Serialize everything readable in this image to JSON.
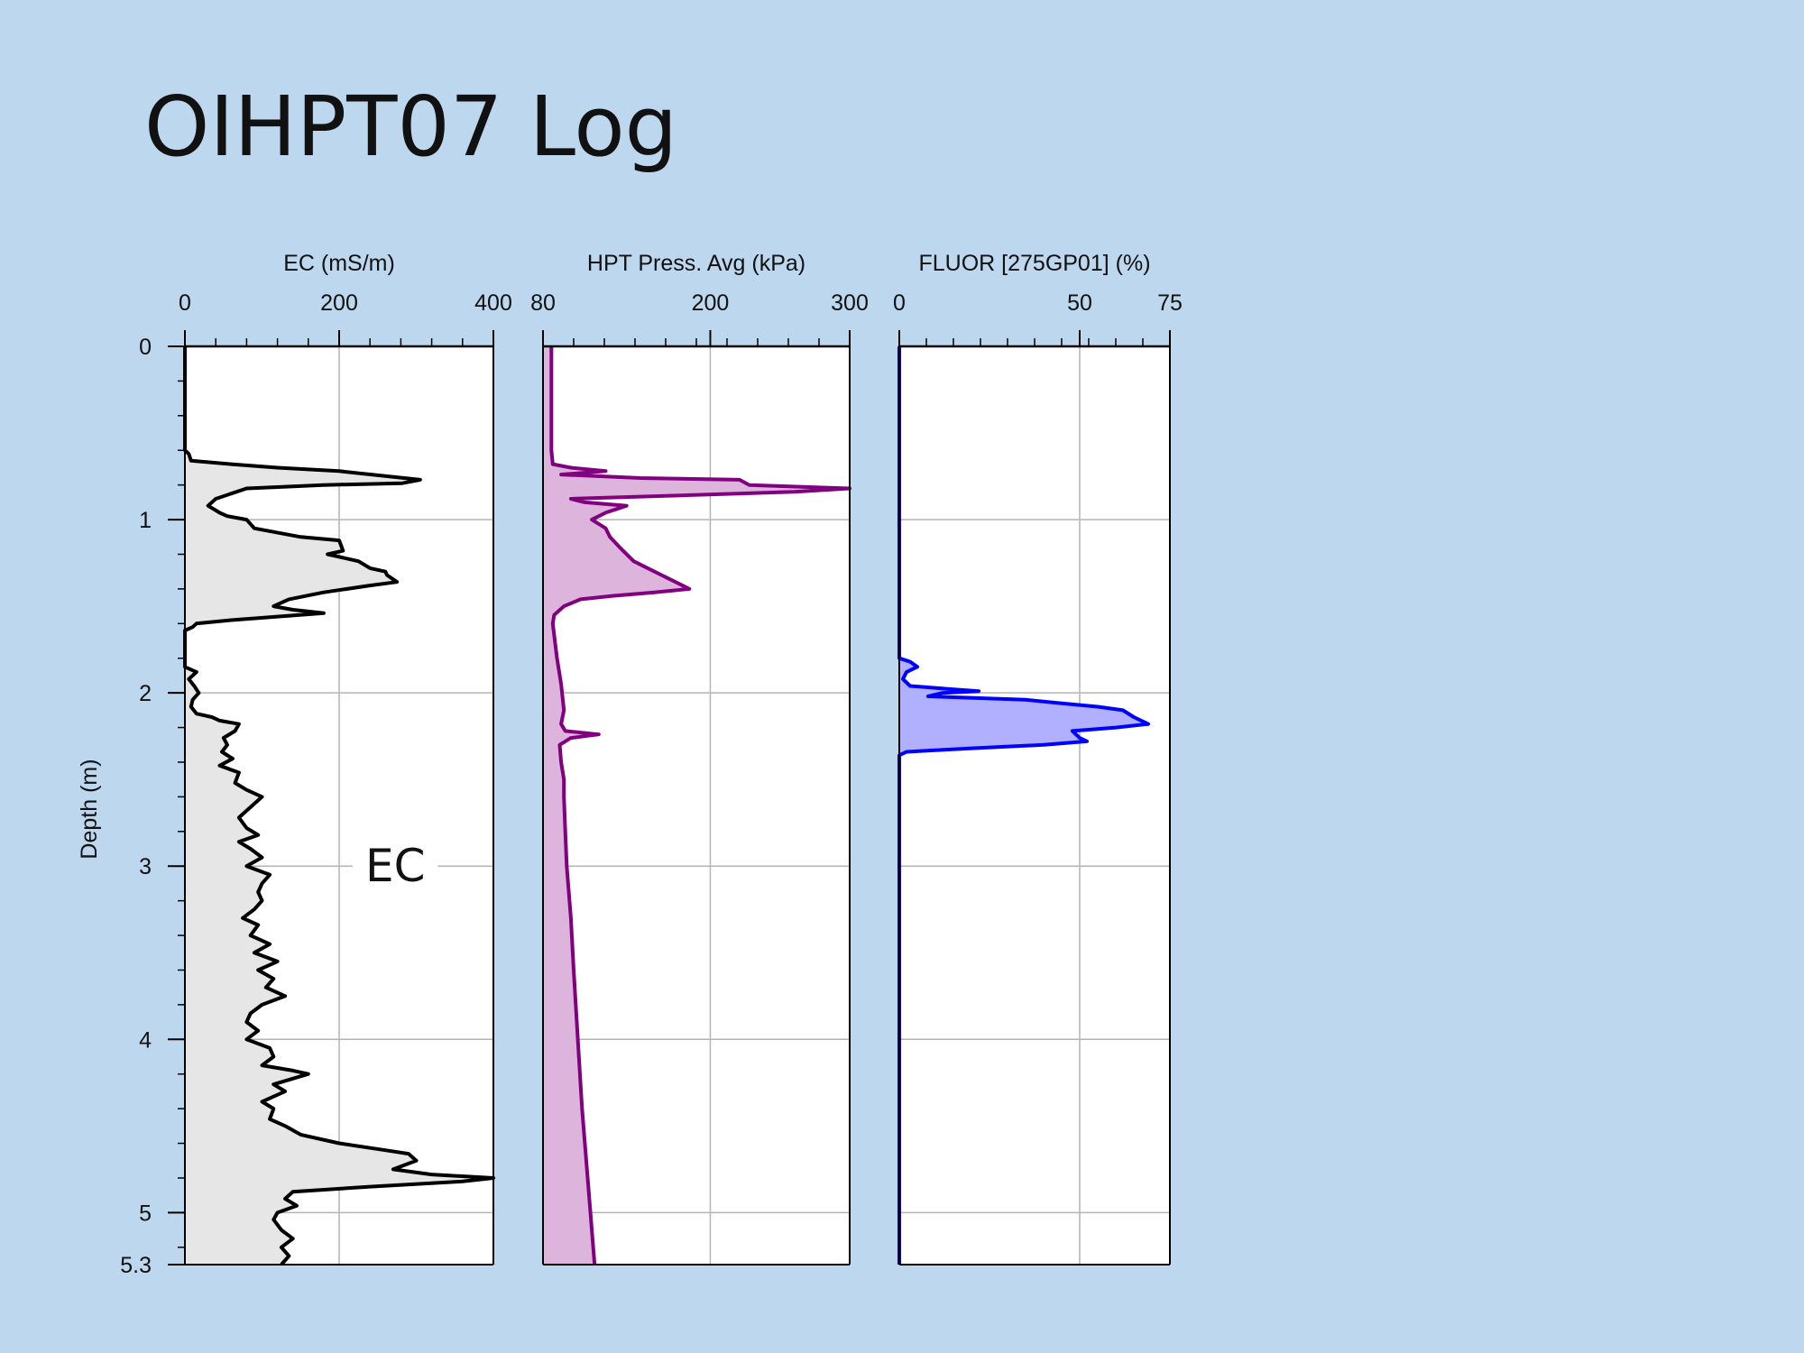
{
  "slide": {
    "title": "OIHPT07 Log"
  },
  "colors": {
    "background": "#bdd7ee",
    "ec_line": "#000000",
    "ec_fill": "#e6e6e6",
    "hpt_line": "#800080",
    "hpt_fill": "#dcb4dc",
    "fluor_line": "#0000ff",
    "fluor_fill": "#b0b0ff",
    "grid": "#b4b4b4"
  },
  "chart_data": {
    "type": "line",
    "orientation": "vertical-depth",
    "ylabel": "Depth (m)",
    "ylim": [
      5.3,
      0
    ],
    "yticks": [
      0,
      1,
      2,
      3,
      4,
      5,
      5.3
    ],
    "annotation": "EC",
    "tracks": [
      {
        "name": "EC (mS/m)",
        "xlim": [
          0,
          400
        ],
        "xticks": [
          0,
          200,
          400
        ],
        "fill": true,
        "series": [
          {
            "points": [
              [
                0,
                0
              ],
              [
                0,
                0.28
              ],
              [
                0,
                0.6
              ],
              [
                5,
                0.62
              ],
              [
                8,
                0.66
              ],
              [
                60,
                0.68
              ],
              [
                120,
                0.7
              ],
              [
                200,
                0.72
              ],
              [
                305,
                0.77
              ],
              [
                282,
                0.79
              ],
              [
                180,
                0.8
              ],
              [
                80,
                0.82
              ],
              [
                40,
                0.88
              ],
              [
                30,
                0.92
              ],
              [
                45,
                0.96
              ],
              [
                55,
                0.98
              ],
              [
                80,
                1.0
              ],
              [
                90,
                1.05
              ],
              [
                150,
                1.1
              ],
              [
                200,
                1.12
              ],
              [
                205,
                1.18
              ],
              [
                185,
                1.2
              ],
              [
                225,
                1.24
              ],
              [
                240,
                1.28
              ],
              [
                260,
                1.3
              ],
              [
                262,
                1.32
              ],
              [
                275,
                1.36
              ],
              [
                240,
                1.38
              ],
              [
                180,
                1.42
              ],
              [
                135,
                1.46
              ],
              [
                115,
                1.5
              ],
              [
                140,
                1.52
              ],
              [
                180,
                1.54
              ],
              [
                120,
                1.56
              ],
              [
                60,
                1.58
              ],
              [
                15,
                1.6
              ],
              [
                10,
                1.62
              ],
              [
                0,
                1.64
              ],
              [
                0,
                1.85
              ],
              [
                15,
                1.88
              ],
              [
                5,
                1.92
              ],
              [
                12,
                1.96
              ],
              [
                18,
                2.0
              ],
              [
                10,
                2.04
              ],
              [
                8,
                2.08
              ],
              [
                15,
                2.12
              ],
              [
                35,
                2.14
              ],
              [
                45,
                2.16
              ],
              [
                70,
                2.18
              ],
              [
                65,
                2.22
              ],
              [
                50,
                2.26
              ],
              [
                55,
                2.3
              ],
              [
                48,
                2.34
              ],
              [
                62,
                2.38
              ],
              [
                45,
                2.42
              ],
              [
                70,
                2.46
              ],
              [
                65,
                2.52
              ],
              [
                80,
                2.56
              ],
              [
                100,
                2.6
              ],
              [
                85,
                2.66
              ],
              [
                70,
                2.72
              ],
              [
                80,
                2.78
              ],
              [
                95,
                2.82
              ],
              [
                70,
                2.86
              ],
              [
                85,
                2.9
              ],
              [
                100,
                2.95
              ],
              [
                80,
                3.0
              ],
              [
                110,
                3.05
              ],
              [
                100,
                3.1
              ],
              [
                95,
                3.15
              ],
              [
                100,
                3.2
              ],
              [
                90,
                3.25
              ],
              [
                75,
                3.3
              ],
              [
                95,
                3.34
              ],
              [
                85,
                3.4
              ],
              [
                110,
                3.45
              ],
              [
                90,
                3.5
              ],
              [
                120,
                3.55
              ],
              [
                95,
                3.6
              ],
              [
                115,
                3.65
              ],
              [
                105,
                3.7
              ],
              [
                130,
                3.75
              ],
              [
                100,
                3.8
              ],
              [
                85,
                3.85
              ],
              [
                80,
                3.9
              ],
              [
                95,
                3.95
              ],
              [
                80,
                4.0
              ],
              [
                110,
                4.05
              ],
              [
                115,
                4.1
              ],
              [
                100,
                4.15
              ],
              [
                140,
                4.18
              ],
              [
                160,
                4.2
              ],
              [
                115,
                4.26
              ],
              [
                130,
                4.3
              ],
              [
                100,
                4.36
              ],
              [
                115,
                4.4
              ],
              [
                110,
                4.46
              ],
              [
                130,
                4.5
              ],
              [
                150,
                4.55
              ],
              [
                200,
                4.6
              ],
              [
                260,
                4.64
              ],
              [
                290,
                4.66
              ],
              [
                300,
                4.7
              ],
              [
                270,
                4.75
              ],
              [
                320,
                4.78
              ],
              [
                400,
                4.8
              ],
              [
                360,
                4.82
              ],
              [
                240,
                4.85
              ],
              [
                140,
                4.88
              ],
              [
                130,
                4.92
              ],
              [
                145,
                4.96
              ],
              [
                120,
                5.0
              ],
              [
                115,
                5.04
              ],
              [
                125,
                5.1
              ],
              [
                140,
                5.15
              ],
              [
                125,
                5.2
              ],
              [
                135,
                5.25
              ],
              [
                125,
                5.3
              ]
            ]
          }
        ]
      },
      {
        "name": "HPT Press. Avg (kPa)",
        "xlim": [
          80,
          300
        ],
        "xticks": [
          80,
          200,
          300
        ],
        "fill": true,
        "series": [
          {
            "points": [
              [
                86,
                0
              ],
              [
                86,
                0.3
              ],
              [
                86,
                0.6
              ],
              [
                87,
                0.68
              ],
              [
                100,
                0.7
              ],
              [
                125,
                0.72
              ],
              [
                93,
                0.74
              ],
              [
                150,
                0.76
              ],
              [
                221,
                0.77
              ],
              [
                228,
                0.8
              ],
              [
                300,
                0.82
              ],
              [
                260,
                0.84
              ],
              [
                100,
                0.88
              ],
              [
                110,
                0.9
              ],
              [
                140,
                0.92
              ],
              [
                125,
                0.96
              ],
              [
                115,
                1.0
              ],
              [
                125,
                1.05
              ],
              [
                128,
                1.1
              ],
              [
                135,
                1.16
              ],
              [
                145,
                1.24
              ],
              [
                160,
                1.3
              ],
              [
                175,
                1.36
              ],
              [
                185,
                1.4
              ],
              [
                160,
                1.42
              ],
              [
                130,
                1.44
              ],
              [
                107,
                1.46
              ],
              [
                95,
                1.5
              ],
              [
                88,
                1.55
              ],
              [
                87,
                1.6
              ],
              [
                90,
                1.8
              ],
              [
                93,
                1.95
              ],
              [
                95,
                2.1
              ],
              [
                93,
                2.18
              ],
              [
                96,
                2.22
              ],
              [
                120,
                2.24
              ],
              [
                100,
                2.26
              ],
              [
                92,
                2.3
              ],
              [
                93,
                2.4
              ],
              [
                95,
                2.5
              ],
              [
                95,
                2.6
              ],
              [
                96,
                2.8
              ],
              [
                97,
                3.0
              ],
              [
                100,
                3.3
              ],
              [
                102,
                3.6
              ],
              [
                105,
                4.0
              ],
              [
                108,
                4.4
              ],
              [
                112,
                4.8
              ],
              [
                117,
                5.3
              ]
            ]
          }
        ]
      },
      {
        "name": "FLUOR [275GP01] (%)",
        "xlim": [
          0,
          75
        ],
        "xticks": [
          0,
          50,
          75
        ],
        "fill": true,
        "series": [
          {
            "points": [
              [
                0,
                0
              ],
              [
                0,
                1.8
              ],
              [
                3,
                1.82
              ],
              [
                5,
                1.85
              ],
              [
                2,
                1.88
              ],
              [
                1,
                1.92
              ],
              [
                3,
                1.96
              ],
              [
                15,
                1.98
              ],
              [
                22,
                1.99
              ],
              [
                12,
                2.0
              ],
              [
                8,
                2.02
              ],
              [
                35,
                2.04
              ],
              [
                45,
                2.06
              ],
              [
                55,
                2.08
              ],
              [
                62,
                2.1
              ],
              [
                65,
                2.14
              ],
              [
                69,
                2.18
              ],
              [
                60,
                2.2
              ],
              [
                48,
                2.22
              ],
              [
                50,
                2.26
              ],
              [
                52,
                2.28
              ],
              [
                40,
                2.3
              ],
              [
                20,
                2.32
              ],
              [
                2,
                2.34
              ],
              [
                0,
                2.36
              ],
              [
                0,
                5.3
              ]
            ]
          }
        ]
      }
    ]
  }
}
